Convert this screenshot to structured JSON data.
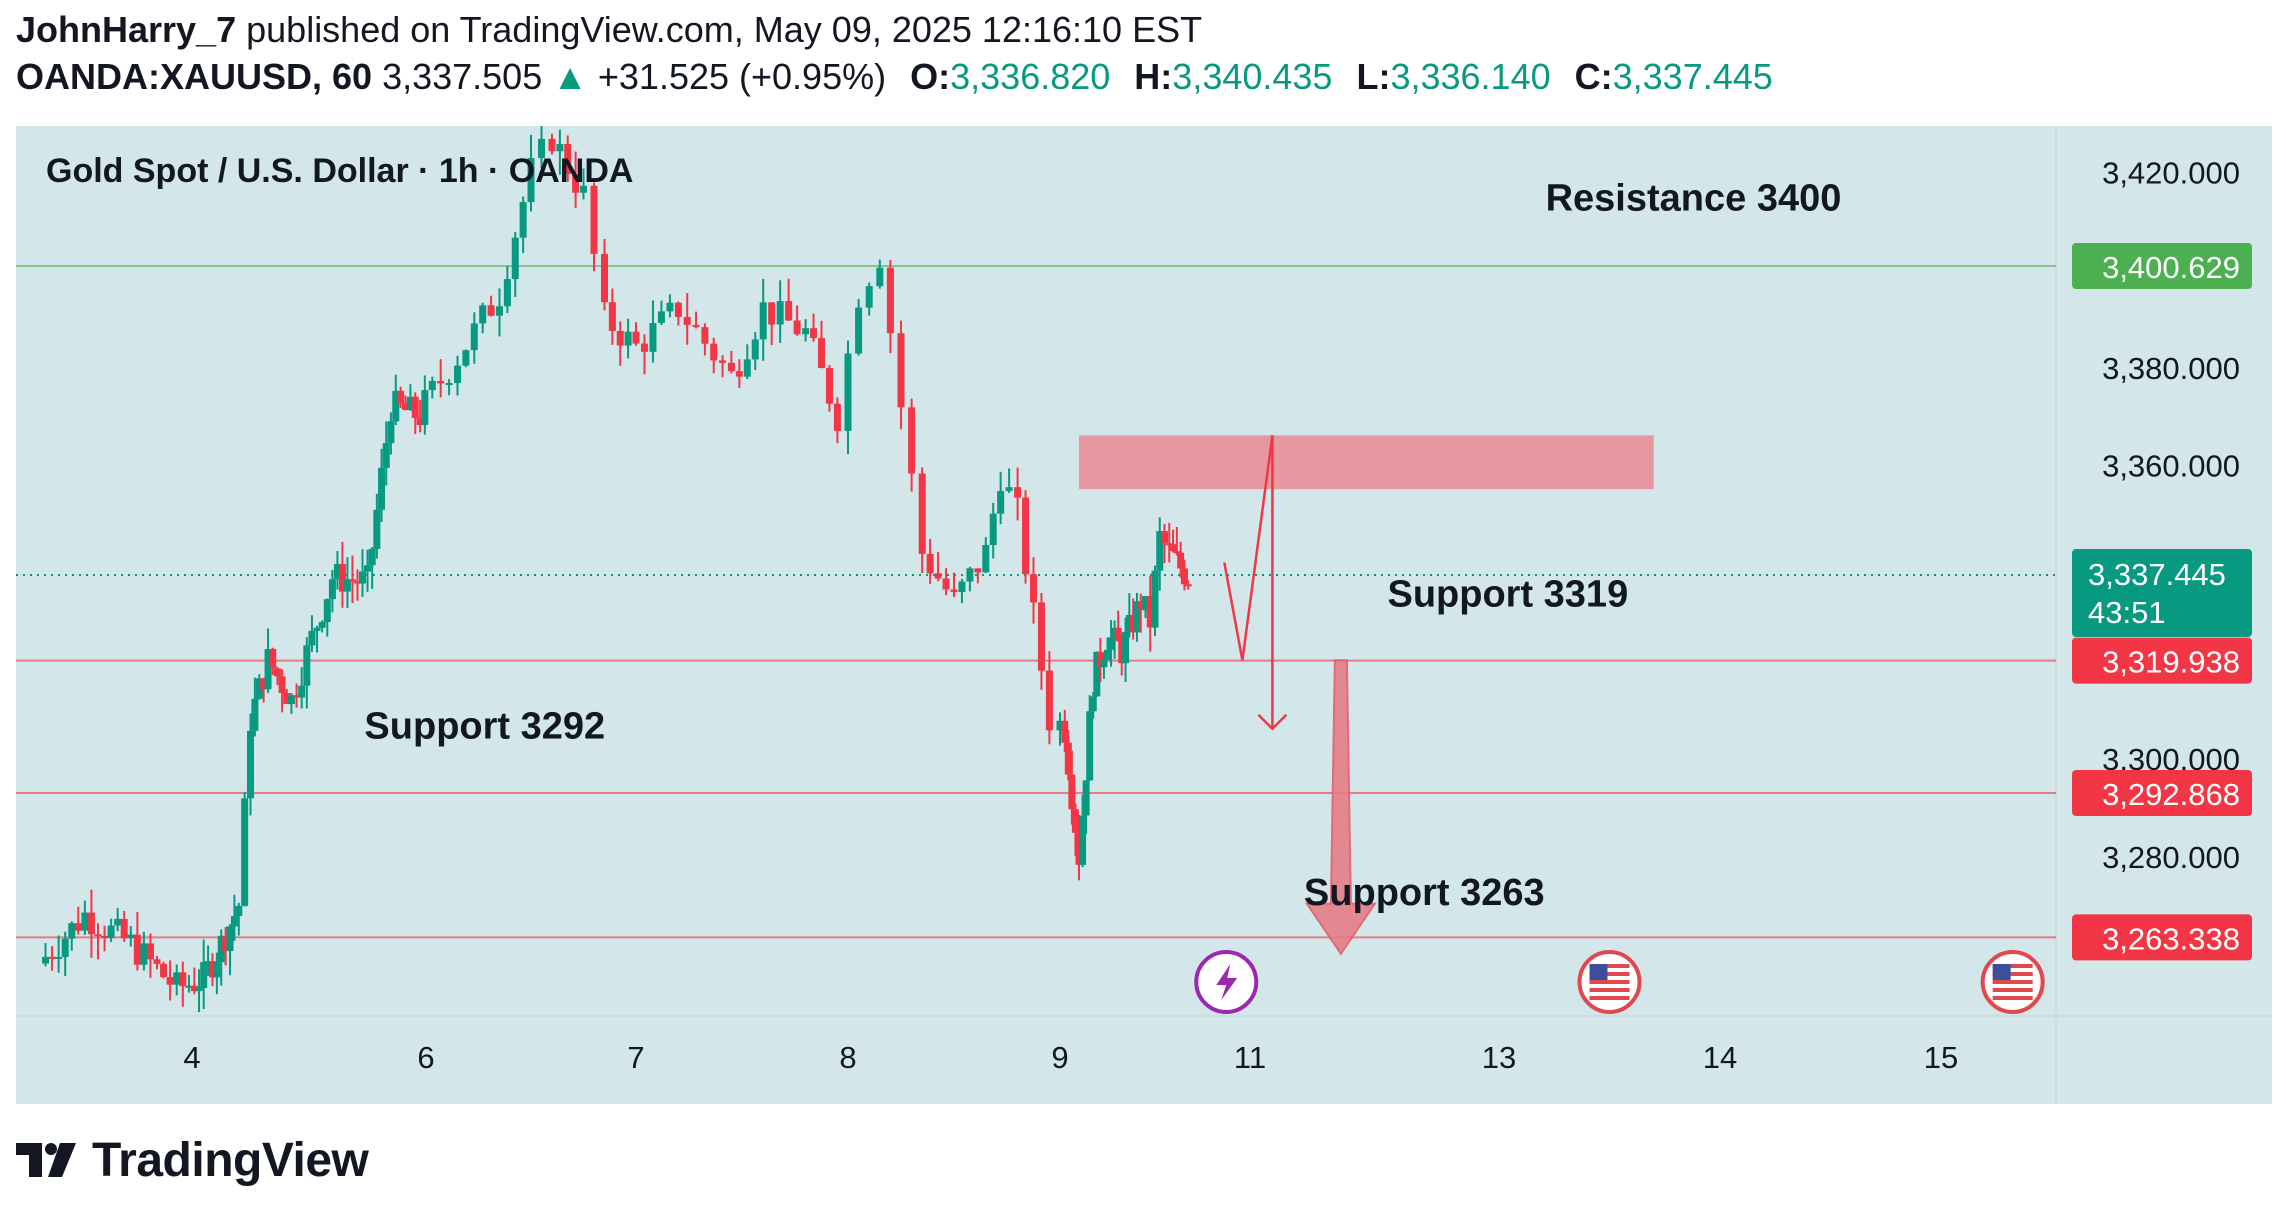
{
  "header": {
    "author": "JohnHarry_7",
    "published_text": "published on TradingView.com, May 09, 2025 12:16:10 EST",
    "symbol": "OANDA:XAUUSD, 60",
    "last_price": "3,337.505",
    "change_arrow": "▲",
    "change": "+31.525 (+0.95%)",
    "open_label": "O:",
    "open": "3,336.820",
    "high_label": "H:",
    "high": "3,340.435",
    "low_label": "L:",
    "low": "3,336.140",
    "close_label": "C:",
    "close": "3,337.445"
  },
  "footer": {
    "brand": "TradingView"
  },
  "colors": {
    "up": "#089981",
    "down": "#f23645",
    "background": "#d3e6ea",
    "resistance": "#4caf50",
    "support": "#f23645",
    "zone": "#e8929b"
  },
  "chart_data": {
    "type": "candlestick",
    "title": "Gold Spot / U.S. Dollar · 1h · OANDA",
    "ylim": [
      3250,
      3430
    ],
    "y_ticks": [
      "3,420.000",
      "3,380.000",
      "3,360.000",
      "3,300.000",
      "3,280.000"
    ],
    "x_ticks": [
      {
        "label": "4",
        "day": 4
      },
      {
        "label": "6",
        "day": 6
      },
      {
        "label": "7",
        "day": 7
      },
      {
        "label": "8",
        "day": 8
      },
      {
        "label": "9",
        "day": 9
      },
      {
        "label": "11",
        "day": 11
      },
      {
        "label": "13",
        "day": 13
      },
      {
        "label": "14",
        "day": 14
      },
      {
        "label": "15",
        "day": 15
      }
    ],
    "levels": [
      {
        "name": "Resistance 3400",
        "price": 3400.629,
        "label": "3,400.629",
        "kind": "resistance"
      },
      {
        "name": "Support 3319",
        "price": 3319.938,
        "label": "3,319.938",
        "kind": "support"
      },
      {
        "name": "Support 3292",
        "price": 3292.868,
        "label": "3,292.868",
        "kind": "support"
      },
      {
        "name": "Support 3263",
        "price": 3263.338,
        "label": "3,263.338",
        "kind": "support"
      }
    ],
    "current_price": {
      "price": 3337.445,
      "label": "3,337.445",
      "countdown": "43:51"
    },
    "zone": {
      "from_day": 9.2,
      "to_day": 13.7,
      "low": 3355,
      "high": 3366
    },
    "projection": [
      {
        "day": 10.73,
        "price": 3340
      },
      {
        "day": 10.92,
        "price": 3320
      },
      {
        "day": 11.18,
        "price": 3366
      },
      {
        "day": 11.18,
        "price": 3306
      }
    ],
    "forecast_arrow": {
      "day": 11.73,
      "from": 3320,
      "to": 3260
    },
    "event_icons": [
      {
        "icon": "lightning-icon",
        "day": 10.75
      },
      {
        "icon": "us-flag-icon",
        "day": 13.5
      },
      {
        "icon": "us-flag-icon",
        "day": 15.5
      }
    ],
    "anchors": [
      [
        3.0,
        3258
      ],
      [
        3.3,
        3268
      ],
      [
        3.6,
        3262
      ],
      [
        3.9,
        3253
      ],
      [
        4.1,
        3255
      ],
      [
        4.25,
        3262
      ],
      [
        4.4,
        3270
      ],
      [
        4.5,
        3308
      ],
      [
        4.65,
        3320
      ],
      [
        4.85,
        3312
      ],
      [
        5.2,
        3337
      ],
      [
        5.5,
        3336
      ],
      [
        5.7,
        3372
      ],
      [
        5.95,
        3370
      ],
      [
        6.15,
        3382
      ],
      [
        6.35,
        3395
      ],
      [
        6.5,
        3420
      ],
      [
        6.6,
        3427
      ],
      [
        6.75,
        3415
      ],
      [
        6.85,
        3390
      ],
      [
        7.0,
        3384
      ],
      [
        7.2,
        3392
      ],
      [
        7.45,
        3378
      ],
      [
        7.6,
        3392
      ],
      [
        7.8,
        3387
      ],
      [
        7.95,
        3370
      ],
      [
        8.05,
        3395
      ],
      [
        8.15,
        3403
      ],
      [
        8.25,
        3372
      ],
      [
        8.35,
        3342
      ],
      [
        8.5,
        3332
      ],
      [
        8.65,
        3342
      ],
      [
        8.72,
        3358
      ],
      [
        8.8,
        3350
      ],
      [
        8.95,
        3308
      ],
      [
        9.05,
        3306
      ],
      [
        9.2,
        3280
      ],
      [
        9.35,
        3316
      ],
      [
        9.5,
        3325
      ],
      [
        9.65,
        3322
      ],
      [
        9.85,
        3332
      ],
      [
        9.95,
        3328
      ],
      [
        10.05,
        3345
      ],
      [
        10.15,
        3342
      ],
      [
        10.35,
        3337
      ]
    ]
  }
}
